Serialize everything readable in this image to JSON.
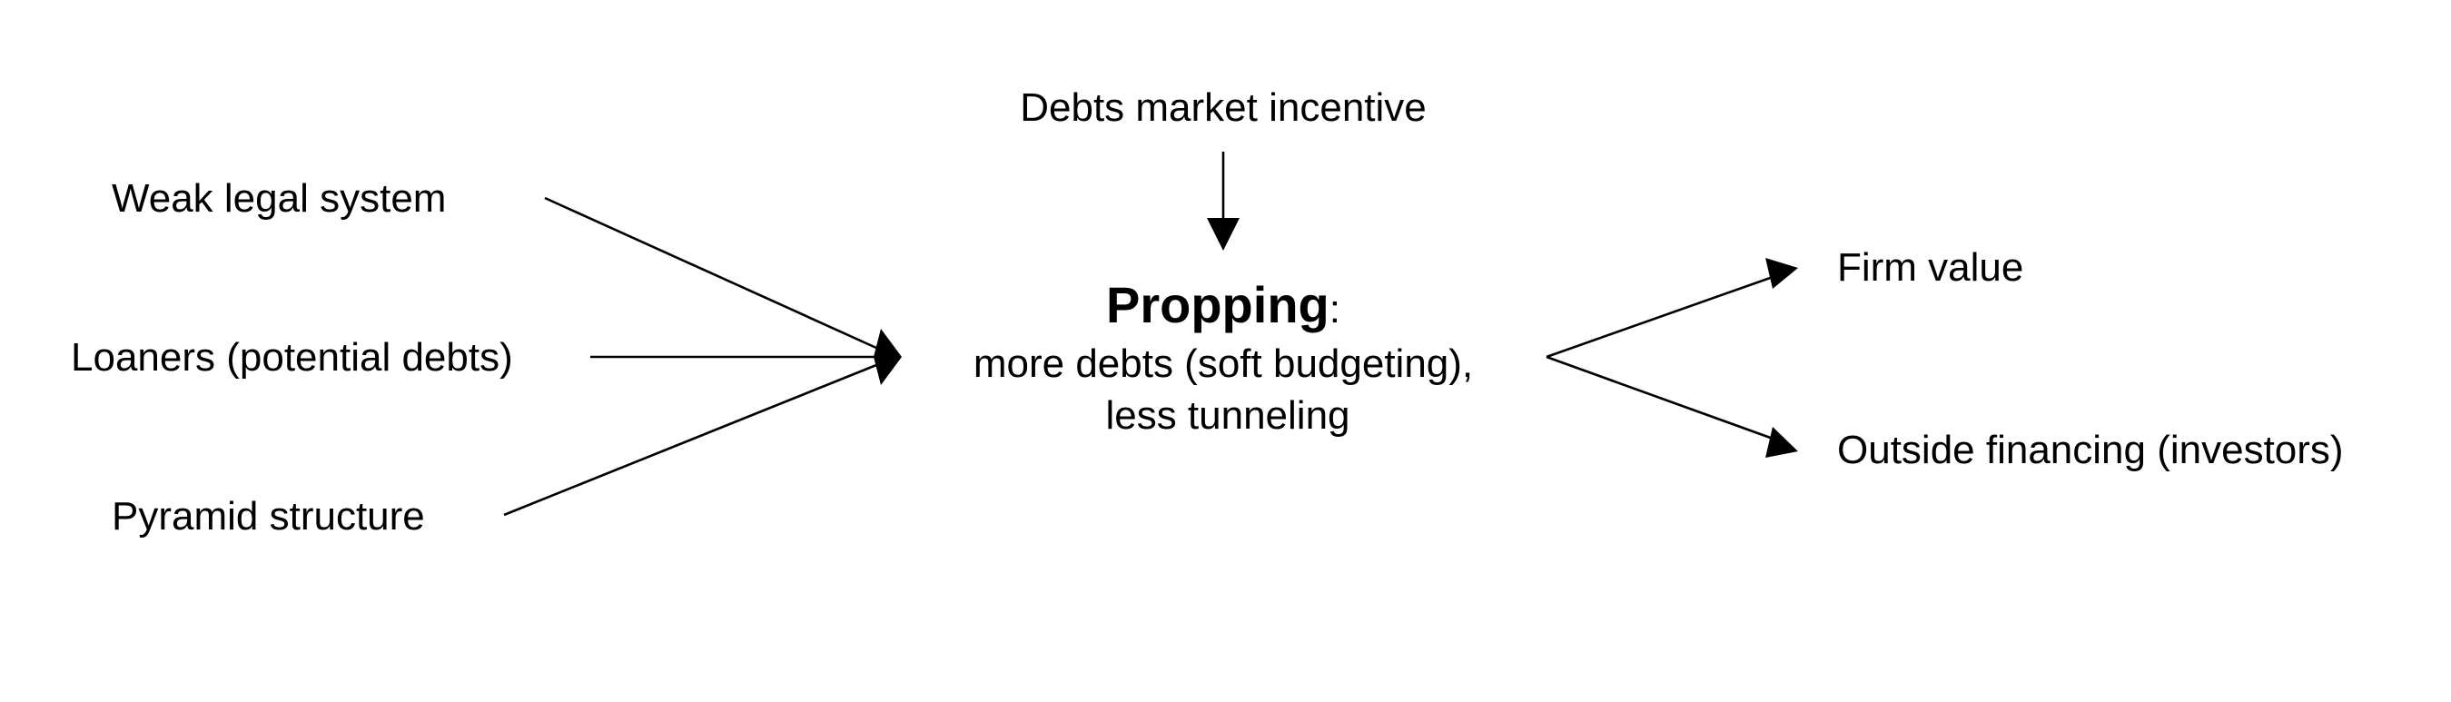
{
  "diagram": {
    "nodes": {
      "weak_legal": "Weak legal system",
      "loaners": "Loaners (potential debts)",
      "pyramid": "Pyramid structure",
      "debts_incentive": "Debts market incentive",
      "propping_title": "Propping",
      "propping_colon": ":",
      "propping_line1": "more debts (soft budgeting),",
      "propping_line2": "less tunneling",
      "firm_value": "Firm value",
      "outside_financing": "Outside financing (investors)"
    },
    "edges": [
      {
        "from": "Weak legal system",
        "to": "Propping"
      },
      {
        "from": "Loaners (potential debts)",
        "to": "Propping"
      },
      {
        "from": "Pyramid structure",
        "to": "Propping"
      },
      {
        "from": "Debts market incentive",
        "to": "Propping"
      },
      {
        "from": "Propping",
        "to": "Firm value"
      },
      {
        "from": "Propping",
        "to": "Outside financing (investors)"
      }
    ],
    "line_color": "#000000"
  }
}
